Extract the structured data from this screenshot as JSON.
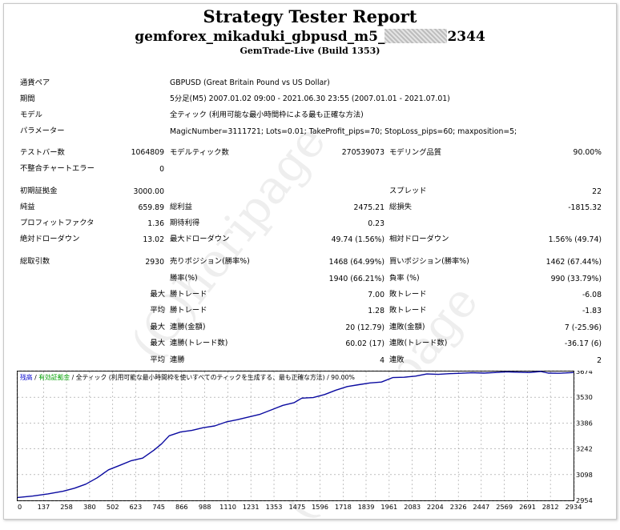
{
  "report": {
    "title": "Strategy Tester Report",
    "subtitle_pre": "gemforex_mikaduki_gbpusd_m5_",
    "subtitle_post": "2344",
    "build": "GemTrade-Live (Build 1353)"
  },
  "info": [
    {
      "label": "通貨ペア",
      "value": "GBPUSD (Great Britain Pound vs US Dollar)"
    },
    {
      "label": "期間",
      "value": "5分足(M5) 2007.01.02 09:00 - 2021.06.30 23:55 (2007.01.01 - 2021.07.01)"
    },
    {
      "label": "モデル",
      "value": "全ティック (利用可能な最小時間枠による最も正確な方法)"
    },
    {
      "label": "パラメーター",
      "value": "MagicNumber=3111721; Lots=0.01; TakeProfit_pips=70; StopLoss_pips=60; maxposition=5;"
    }
  ],
  "stats": {
    "bars_label": "テストバー数",
    "bars_value": "1064809",
    "ticks_label": "モデルティック数",
    "ticks_value": "270539073",
    "quality_label": "モデリング品質",
    "quality_value": "90.00%",
    "mismatch_label": "不整合チャートエラー",
    "mismatch_value": "0",
    "deposit_label": "初期証拠金",
    "deposit_value": "3000.00",
    "spread_label": "スプレッド",
    "spread_value": "22",
    "net_label": "純益",
    "net_value": "659.89",
    "gross_profit_label": "総利益",
    "gross_profit_value": "2475.21",
    "gross_loss_label": "総損失",
    "gross_loss_value": "-1815.32",
    "pf_label": "プロフィットファクタ",
    "pf_value": "1.36",
    "expected_label": "期待利得",
    "expected_value": "0.23",
    "abs_dd_label": "絶対ドローダウン",
    "abs_dd_value": "13.02",
    "max_dd_label": "最大ドローダウン",
    "max_dd_value": "49.74 (1.56%)",
    "rel_dd_label": "相対ドローダウン",
    "rel_dd_value": "1.56% (49.74)",
    "trades_label": "総取引数",
    "trades_value": "2930",
    "short_label": "売りポジション(勝率%)",
    "short_value": "1468 (64.99%)",
    "long_label": "買いポジション(勝率%)",
    "long_value": "1462 (67.44%)",
    "win_pct_label": "勝率(%)",
    "win_pct_value": "1940 (66.21%)",
    "loss_pct_label": "負率 (%)",
    "loss_pct_value": "990 (33.79%)",
    "largest_label": "最大",
    "largest_win_label": "勝トレード",
    "largest_win_value": "7.00",
    "largest_loss_label": "敗トレード",
    "largest_loss_value": "-6.08",
    "average_label": "平均",
    "avg_win_label": "勝トレード",
    "avg_win_value": "1.28",
    "avg_loss_label": "敗トレード",
    "avg_loss_value": "-1.83",
    "max1_label": "最大",
    "max_consec_wins_label": "連勝(金額)",
    "max_consec_wins_value": "20 (12.79)",
    "max_consec_losses_label": "連敗(金額)",
    "max_consec_losses_value": "7 (-25.96)",
    "max2_label": "最大",
    "max_consec_profit_label": "連勝(トレード数)",
    "max_consec_profit_value": "60.02 (17)",
    "max_consec_loss_label": "連敗(トレード数)",
    "max_consec_loss_value": "-36.17 (6)",
    "avg2_label": "平均",
    "avg_consec_wins_label": "連勝",
    "avg_consec_wins_value": "4",
    "avg_consec_losses_label": "連敗",
    "avg_consec_losses_value": "2"
  },
  "watermark": "(C)horipage",
  "chart_data": {
    "type": "line",
    "legend": [
      {
        "text": "残高",
        "color": "#0000cc"
      },
      {
        "text": "/",
        "color": "#000000"
      },
      {
        "text": "有効証拠金",
        "color": "#00a000"
      },
      {
        "text": "/ 全ティック (利用可能な最小時間枠を使いすべてのティックを生成する、最も正確な方法) / 90.00%",
        "color": "#000000"
      }
    ],
    "x_ticks": [
      0,
      137,
      258,
      380,
      502,
      623,
      745,
      866,
      988,
      1110,
      1231,
      1353,
      1475,
      1596,
      1718,
      1839,
      1961,
      2083,
      2204,
      2326,
      2447,
      2569,
      2691,
      2812,
      2934
    ],
    "y_ticks": [
      2954,
      3098,
      3242,
      3386,
      3530,
      3674
    ],
    "xlim": [
      0,
      2934
    ],
    "ylim": [
      2954,
      3674
    ],
    "line_color": "#0a0aa0",
    "series": [
      {
        "x": [
          0,
          80,
          160,
          240,
          300,
          360,
          420,
          480,
          540,
          600,
          660,
          720,
          760,
          800,
          860,
          920,
          980,
          1040,
          1100,
          1160,
          1220,
          1280,
          1340,
          1400,
          1460,
          1500,
          1560,
          1620,
          1680,
          1740,
          1800,
          1860,
          1920,
          1980,
          2040,
          2100,
          2160,
          2220,
          2280,
          2340,
          2400,
          2460,
          2520,
          2580,
          2640,
          2700,
          2760,
          2800,
          2860,
          2934
        ],
        "values": [
          2970,
          2978,
          2990,
          3005,
          3022,
          3045,
          3080,
          3125,
          3150,
          3176,
          3190,
          3235,
          3270,
          3315,
          3336,
          3345,
          3360,
          3370,
          3392,
          3405,
          3420,
          3435,
          3460,
          3485,
          3500,
          3525,
          3528,
          3545,
          3570,
          3590,
          3600,
          3610,
          3615,
          3640,
          3642,
          3648,
          3660,
          3658,
          3662,
          3664,
          3667,
          3665,
          3668,
          3672,
          3670,
          3668,
          3674,
          3665,
          3664,
          3668
        ]
      }
    ]
  }
}
